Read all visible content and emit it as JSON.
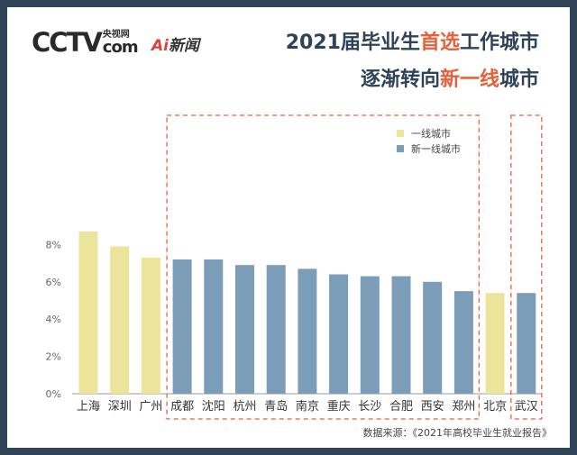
{
  "brand": {
    "cctv": "CCTV",
    "cctv_cn": "央视网",
    "cctv_com": "com",
    "ai_logo_ai": "Ai",
    "ai_logo_text": "新闻"
  },
  "title": {
    "line1_a": "2021届毕业生",
    "line1_hl": "首选",
    "line1_b": "工作城市",
    "line2_a": "逐渐转向",
    "line2_hl": "新一线",
    "line2_b": "城市"
  },
  "source": "数据来源：《2021年高校毕业生就业报告》",
  "colors": {
    "first_tier": "#ede49c",
    "new_first_tier": "#7b9db8",
    "highlight": "#e8603a",
    "background": "#2e4358"
  },
  "chart_data": {
    "type": "bar",
    "categories": [
      "上海",
      "深圳",
      "广州",
      "成都",
      "沈阳",
      "杭州",
      "青岛",
      "南京",
      "重庆",
      "长沙",
      "合肥",
      "西安",
      "郑州",
      "北京",
      "武汉"
    ],
    "values": [
      8.7,
      7.9,
      7.3,
      7.2,
      7.2,
      6.9,
      6.9,
      6.7,
      6.4,
      6.3,
      6.3,
      6.0,
      5.5,
      5.4,
      5.4
    ],
    "groups": [
      "一线城市",
      "一线城市",
      "一线城市",
      "新一线城市",
      "新一线城市",
      "新一线城市",
      "新一线城市",
      "新一线城市",
      "新一线城市",
      "新一线城市",
      "新一线城市",
      "新一线城市",
      "新一线城市",
      "一线城市",
      "新一线城市"
    ],
    "yticks": [
      "0%",
      "2%",
      "4%",
      "6%",
      "8%"
    ],
    "ylim": [
      0,
      9
    ],
    "legend": [
      {
        "name": "一线城市",
        "color": "#ede49c"
      },
      {
        "name": "新一线城市",
        "color": "#7b9db8"
      }
    ],
    "legend_position": "top-right",
    "grid": false
  }
}
